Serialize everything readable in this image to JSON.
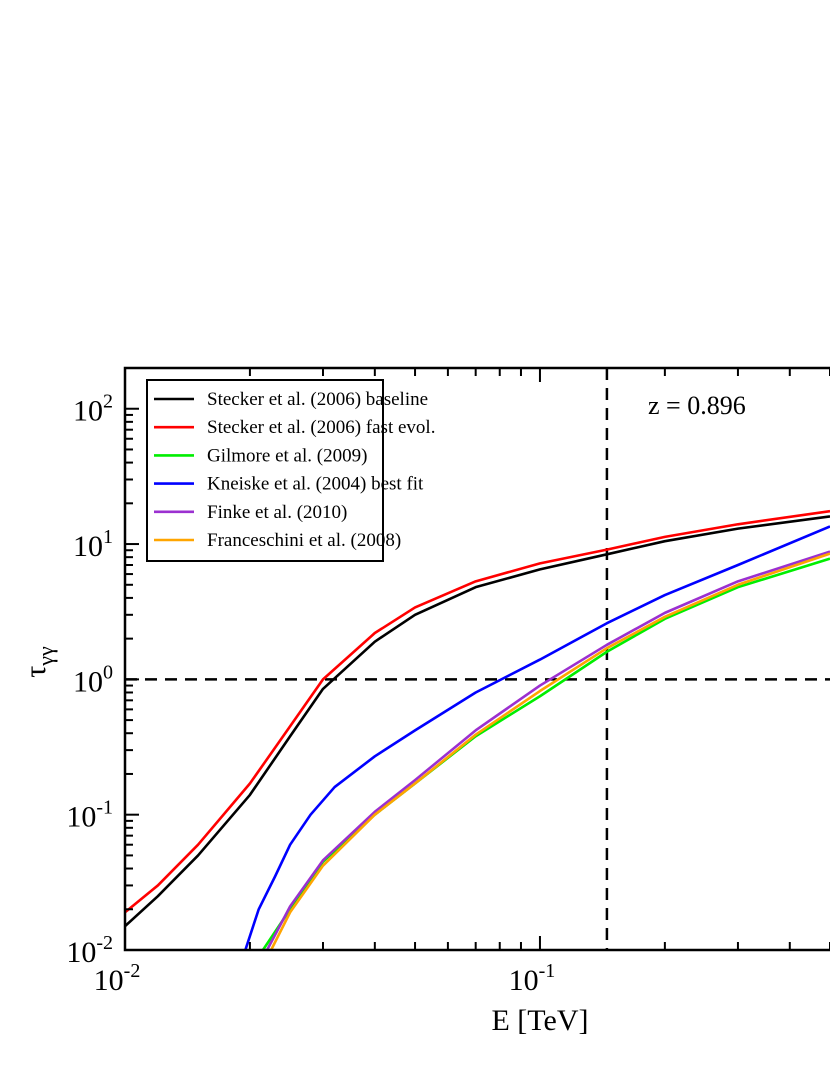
{
  "chart_data": {
    "type": "line",
    "xscale": "log",
    "yscale": "log",
    "xlim": [
      0.01,
      0.5
    ],
    "ylim": [
      0.01,
      200
    ],
    "xlabel": "E [TeV]",
    "ylabel": "τγγ",
    "ylabel_main": "τ",
    "ylabel_sub": "γγ",
    "x_ticks": [
      {
        "value": 0.01,
        "base": "10",
        "exp": "-2"
      },
      {
        "value": 0.1,
        "base": "10",
        "exp": "-1"
      }
    ],
    "y_ticks": [
      {
        "value": 0.01,
        "base": "10",
        "exp": "-2"
      },
      {
        "value": 0.1,
        "base": "10",
        "exp": "-1"
      },
      {
        "value": 1,
        "base": "10",
        "exp": "0"
      },
      {
        "value": 10,
        "base": "10",
        "exp": "1"
      },
      {
        "value": 100,
        "base": "10",
        "exp": "2"
      }
    ],
    "annotation": "z = 0.896",
    "reference_lines": {
      "vertical_x": 0.145,
      "horizontal_y": 1
    },
    "legend_position": "top-left",
    "grid": false,
    "series": [
      {
        "name": "Stecker et al. (2006) baseline",
        "color": "#000000",
        "x": [
          0.01,
          0.012,
          0.015,
          0.02,
          0.025,
          0.03,
          0.04,
          0.05,
          0.07,
          0.1,
          0.145,
          0.2,
          0.3,
          0.5
        ],
        "y": [
          0.015,
          0.025,
          0.05,
          0.14,
          0.38,
          0.85,
          1.9,
          3.0,
          4.8,
          6.5,
          8.4,
          10.5,
          13.0,
          16.0
        ]
      },
      {
        "name": "Stecker et al. (2006) fast evol.",
        "color": "#ff0000",
        "x": [
          0.01,
          0.012,
          0.015,
          0.02,
          0.025,
          0.03,
          0.04,
          0.05,
          0.07,
          0.1,
          0.145,
          0.2,
          0.3,
          0.5
        ],
        "y": [
          0.019,
          0.03,
          0.06,
          0.17,
          0.45,
          1.0,
          2.2,
          3.4,
          5.3,
          7.2,
          9.1,
          11.3,
          14.0,
          17.5
        ]
      },
      {
        "name": "Gilmore et al. (2009)",
        "color": "#00ee00",
        "x": [
          0.0215,
          0.025,
          0.03,
          0.04,
          0.05,
          0.07,
          0.1,
          0.145,
          0.2,
          0.3,
          0.5
        ],
        "y": [
          0.01,
          0.02,
          0.045,
          0.1,
          0.17,
          0.38,
          0.75,
          1.6,
          2.8,
          4.8,
          7.8
        ]
      },
      {
        "name": "Kneiske et al. (2004) best fit",
        "color": "#0000ff",
        "x": [
          0.0195,
          0.021,
          0.023,
          0.025,
          0.028,
          0.032,
          0.04,
          0.05,
          0.07,
          0.1,
          0.145,
          0.2,
          0.3,
          0.5
        ],
        "y": [
          0.01,
          0.02,
          0.035,
          0.06,
          0.1,
          0.16,
          0.27,
          0.42,
          0.8,
          1.4,
          2.6,
          4.2,
          7.0,
          13.5
        ]
      },
      {
        "name": "Finke et al. (2010)",
        "color": "#9b30d0",
        "x": [
          0.022,
          0.025,
          0.03,
          0.04,
          0.05,
          0.07,
          0.1,
          0.145,
          0.2,
          0.3,
          0.5
        ],
        "y": [
          0.01,
          0.021,
          0.046,
          0.105,
          0.18,
          0.42,
          0.9,
          1.8,
          3.1,
          5.3,
          8.8
        ]
      },
      {
        "name": "Franceschini et al. (2008)",
        "color": "#ffa500",
        "x": [
          0.0225,
          0.025,
          0.03,
          0.04,
          0.05,
          0.07,
          0.1,
          0.145,
          0.2,
          0.3,
          0.5
        ],
        "y": [
          0.01,
          0.019,
          0.042,
          0.1,
          0.17,
          0.39,
          0.82,
          1.7,
          2.9,
          5.0,
          8.5
        ]
      }
    ]
  }
}
